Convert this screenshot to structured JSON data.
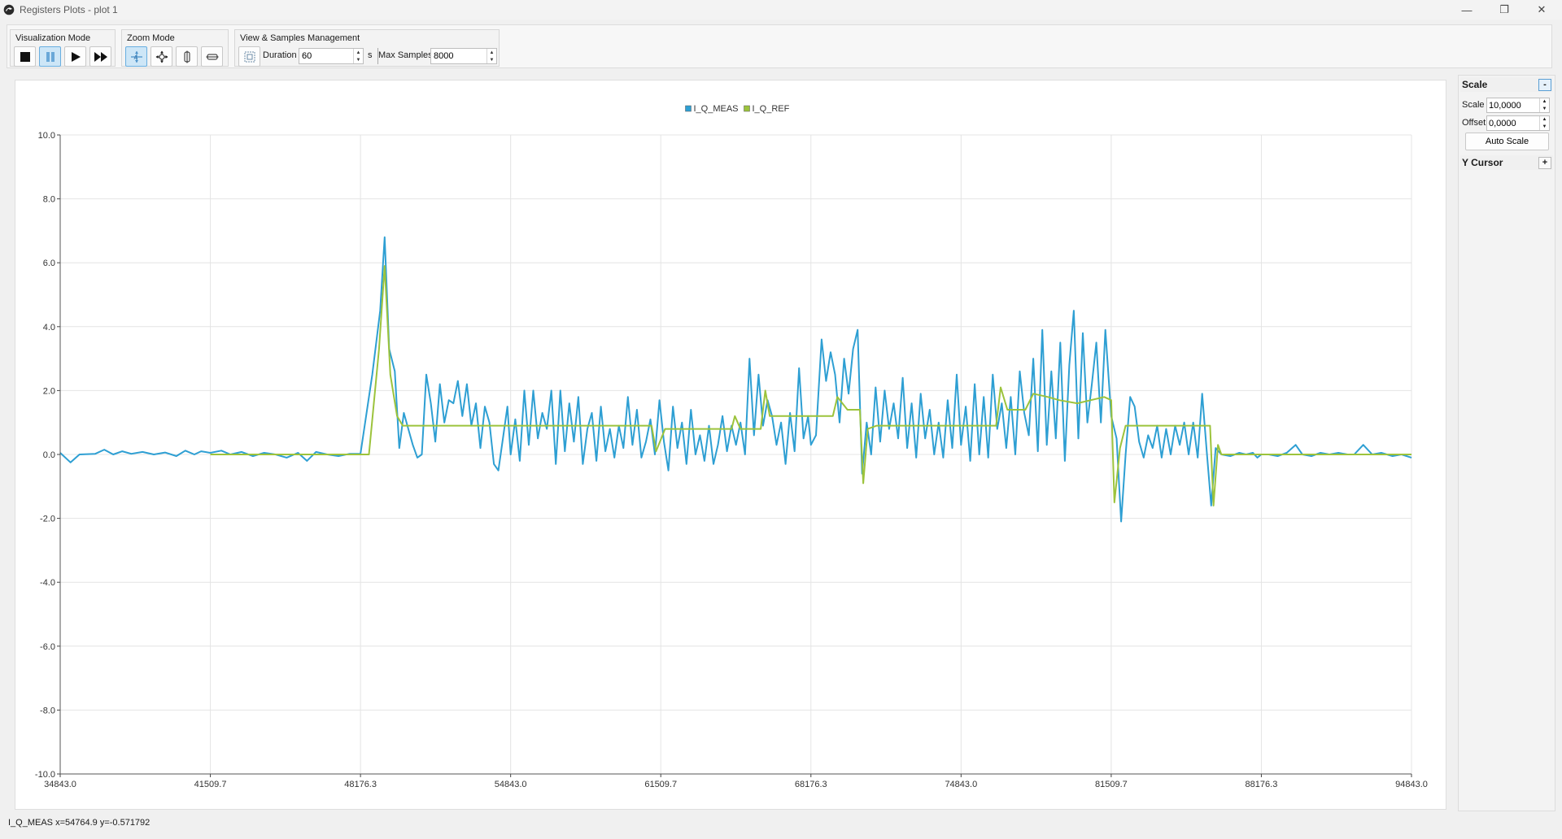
{
  "window": {
    "title": "Registers Plots - plot 1",
    "minimize_glyph": "—",
    "restore_glyph": "❐",
    "close_glyph": "✕"
  },
  "toolbar": {
    "visualization": {
      "label": "Visualization Mode",
      "buttons": [
        "stop-icon",
        "pause-icon",
        "play-icon",
        "fast-forward-icon"
      ],
      "active": "pause-icon"
    },
    "zoom": {
      "label": "Zoom Mode",
      "buttons": [
        "zoom-auto-icon",
        "zoom-xy-icon",
        "zoom-vertical-icon",
        "zoom-horizontal-icon"
      ],
      "active": "zoom-auto-icon"
    },
    "view": {
      "label": "View & Samples Management",
      "fit_icon": "fit-view-icon",
      "duration_label": "Duration",
      "duration_value": "60",
      "duration_unit": "s",
      "max_samples_label": "Max Samples",
      "max_samples_value": "8000"
    }
  },
  "sidebar": {
    "scale_header": "Scale",
    "scale_toggle": "-",
    "scale_label": "Scale",
    "scale_value": "10,0000",
    "offset_label": "Offset",
    "offset_value": "0,0000",
    "auto_scale_label": "Auto Scale",
    "ycursor_header": "Y Cursor",
    "ycursor_toggle": "+"
  },
  "status_text": "I_Q_MEAS x=54764.9 y=-0.571792",
  "colors": {
    "meas": "#2e9fd3",
    "ref": "#9cc33c",
    "active_button": "#cde6f7",
    "grid": "#e4e4e4"
  },
  "chart_data": {
    "type": "line",
    "legend_placement": "top-center",
    "grid": true,
    "xlim": [
      34843.0,
      94843.0
    ],
    "ylim": [
      -10.0,
      10.0
    ],
    "x_ticks": [
      "34843.0",
      "41509.7",
      "48176.3",
      "54843.0",
      "61509.7",
      "68176.3",
      "74843.0",
      "81509.7",
      "88176.3",
      "94843.0"
    ],
    "y_ticks": [
      "10.0",
      "8.0",
      "6.0",
      "4.0",
      "2.0",
      "0.0",
      "-2.0",
      "-4.0",
      "-6.0",
      "-8.0",
      "-10.0"
    ],
    "series": [
      {
        "name": "I_Q_MEAS",
        "color": "#2e9fd3",
        "points": [
          [
            34843,
            0.05
          ],
          [
            35300,
            -0.25
          ],
          [
            35700,
            0.0
          ],
          [
            36400,
            0.02
          ],
          [
            36800,
            0.15
          ],
          [
            37200,
            0.0
          ],
          [
            37600,
            0.1
          ],
          [
            38000,
            0.02
          ],
          [
            38500,
            0.08
          ],
          [
            39000,
            0.0
          ],
          [
            39500,
            0.06
          ],
          [
            40000,
            -0.05
          ],
          [
            40400,
            0.12
          ],
          [
            40800,
            0.0
          ],
          [
            41100,
            0.1
          ],
          [
            41509,
            0.05
          ],
          [
            42000,
            0.12
          ],
          [
            42400,
            0.0
          ],
          [
            42900,
            0.08
          ],
          [
            43400,
            -0.05
          ],
          [
            43900,
            0.05
          ],
          [
            44400,
            0.0
          ],
          [
            44900,
            -0.1
          ],
          [
            45400,
            0.05
          ],
          [
            45800,
            -0.2
          ],
          [
            46200,
            0.08
          ],
          [
            46700,
            0.0
          ],
          [
            47200,
            -0.05
          ],
          [
            47700,
            0.02
          ],
          [
            48176,
            0.02
          ],
          [
            48700,
            2.5
          ],
          [
            49050,
            4.5
          ],
          [
            49250,
            6.8
          ],
          [
            49450,
            3.3
          ],
          [
            49700,
            2.6
          ],
          [
            49900,
            0.2
          ],
          [
            50100,
            1.3
          ],
          [
            50300,
            0.8
          ],
          [
            50500,
            0.3
          ],
          [
            50700,
            -0.1
          ],
          [
            50900,
            0.0
          ],
          [
            51100,
            2.5
          ],
          [
            51300,
            1.6
          ],
          [
            51500,
            0.4
          ],
          [
            51700,
            2.2
          ],
          [
            51900,
            1.0
          ],
          [
            52100,
            1.7
          ],
          [
            52300,
            1.6
          ],
          [
            52500,
            2.3
          ],
          [
            52700,
            1.2
          ],
          [
            52900,
            2.2
          ],
          [
            53100,
            0.9
          ],
          [
            53300,
            1.6
          ],
          [
            53500,
            0.2
          ],
          [
            53700,
            1.5
          ],
          [
            53900,
            1.0
          ],
          [
            54100,
            -0.3
          ],
          [
            54300,
            -0.5
          ],
          [
            54500,
            0.5
          ],
          [
            54700,
            1.5
          ],
          [
            54843,
            0.0
          ],
          [
            55050,
            1.1
          ],
          [
            55250,
            -0.2
          ],
          [
            55450,
            2.0
          ],
          [
            55650,
            0.3
          ],
          [
            55850,
            2.0
          ],
          [
            56050,
            0.5
          ],
          [
            56250,
            1.3
          ],
          [
            56450,
            0.8
          ],
          [
            56650,
            2.0
          ],
          [
            56850,
            -0.3
          ],
          [
            57050,
            2.0
          ],
          [
            57250,
            0.1
          ],
          [
            57450,
            1.6
          ],
          [
            57650,
            0.4
          ],
          [
            57850,
            1.8
          ],
          [
            58050,
            -0.3
          ],
          [
            58250,
            0.8
          ],
          [
            58450,
            1.3
          ],
          [
            58650,
            -0.2
          ],
          [
            58850,
            1.5
          ],
          [
            59050,
            0.1
          ],
          [
            59250,
            0.8
          ],
          [
            59450,
            -0.1
          ],
          [
            59650,
            0.9
          ],
          [
            59850,
            0.2
          ],
          [
            60050,
            1.8
          ],
          [
            60250,
            0.3
          ],
          [
            60450,
            1.4
          ],
          [
            60650,
            -0.1
          ],
          [
            60850,
            0.4
          ],
          [
            61050,
            1.1
          ],
          [
            61250,
            0.0
          ],
          [
            61450,
            1.7
          ],
          [
            61650,
            0.4
          ],
          [
            61850,
            -0.5
          ],
          [
            62050,
            1.5
          ],
          [
            62250,
            0.2
          ],
          [
            62450,
            1.0
          ],
          [
            62650,
            -0.3
          ],
          [
            62850,
            1.4
          ],
          [
            63050,
            0.0
          ],
          [
            63250,
            0.6
          ],
          [
            63450,
            -0.2
          ],
          [
            63650,
            0.9
          ],
          [
            63850,
            -0.3
          ],
          [
            64050,
            0.3
          ],
          [
            64250,
            1.2
          ],
          [
            64450,
            0.1
          ],
          [
            64650,
            0.9
          ],
          [
            64850,
            0.3
          ],
          [
            65050,
            1.0
          ],
          [
            65250,
            0.0
          ],
          [
            65450,
            3.0
          ],
          [
            65650,
            0.6
          ],
          [
            65850,
            2.5
          ],
          [
            66050,
            0.9
          ],
          [
            66250,
            1.7
          ],
          [
            66450,
            1.2
          ],
          [
            66650,
            0.3
          ],
          [
            66850,
            1.0
          ],
          [
            67050,
            -0.3
          ],
          [
            67250,
            1.3
          ],
          [
            67450,
            0.1
          ],
          [
            67650,
            2.7
          ],
          [
            67850,
            0.5
          ],
          [
            68050,
            1.2
          ],
          [
            68176,
            0.3
          ],
          [
            68400,
            0.6
          ],
          [
            68650,
            3.6
          ],
          [
            68850,
            2.3
          ],
          [
            69050,
            3.2
          ],
          [
            69250,
            2.5
          ],
          [
            69450,
            1.0
          ],
          [
            69650,
            3.0
          ],
          [
            69850,
            1.9
          ],
          [
            70050,
            3.3
          ],
          [
            70250,
            3.9
          ],
          [
            70450,
            -0.6
          ],
          [
            70650,
            1.0
          ],
          [
            70850,
            0.0
          ],
          [
            71050,
            2.1
          ],
          [
            71250,
            0.4
          ],
          [
            71450,
            2.0
          ],
          [
            71650,
            0.8
          ],
          [
            71850,
            1.6
          ],
          [
            72050,
            0.5
          ],
          [
            72250,
            2.4
          ],
          [
            72450,
            0.2
          ],
          [
            72650,
            1.6
          ],
          [
            72850,
            -0.1
          ],
          [
            73050,
            1.9
          ],
          [
            73250,
            0.5
          ],
          [
            73450,
            1.4
          ],
          [
            73650,
            0.0
          ],
          [
            73850,
            1.0
          ],
          [
            74050,
            -0.1
          ],
          [
            74250,
            1.7
          ],
          [
            74450,
            0.2
          ],
          [
            74650,
            2.5
          ],
          [
            74843,
            0.3
          ],
          [
            75050,
            1.5
          ],
          [
            75250,
            -0.2
          ],
          [
            75450,
            2.2
          ],
          [
            75650,
            0.0
          ],
          [
            75850,
            1.8
          ],
          [
            76050,
            -0.1
          ],
          [
            76250,
            2.5
          ],
          [
            76450,
            0.8
          ],
          [
            76650,
            1.6
          ],
          [
            76850,
            0.2
          ],
          [
            77050,
            1.8
          ],
          [
            77250,
            0.0
          ],
          [
            77450,
            2.6
          ],
          [
            77650,
            1.3
          ],
          [
            77850,
            0.6
          ],
          [
            78050,
            3.0
          ],
          [
            78250,
            0.1
          ],
          [
            78450,
            3.9
          ],
          [
            78650,
            0.3
          ],
          [
            78850,
            2.6
          ],
          [
            79050,
            0.5
          ],
          [
            79250,
            3.5
          ],
          [
            79450,
            -0.2
          ],
          [
            79650,
            2.8
          ],
          [
            79850,
            4.5
          ],
          [
            80050,
            0.5
          ],
          [
            80250,
            3.8
          ],
          [
            80450,
            1.0
          ],
          [
            80650,
            2.2
          ],
          [
            80850,
            3.5
          ],
          [
            81050,
            1.0
          ],
          [
            81250,
            3.9
          ],
          [
            81509,
            1.2
          ],
          [
            81750,
            0.5
          ],
          [
            81950,
            -2.1
          ],
          [
            82150,
            0.0
          ],
          [
            82350,
            1.8
          ],
          [
            82550,
            1.5
          ],
          [
            82750,
            0.4
          ],
          [
            82950,
            -0.1
          ],
          [
            83150,
            0.6
          ],
          [
            83350,
            0.2
          ],
          [
            83550,
            0.9
          ],
          [
            83750,
            -0.1
          ],
          [
            83950,
            0.8
          ],
          [
            84150,
            0.0
          ],
          [
            84350,
            0.9
          ],
          [
            84550,
            0.3
          ],
          [
            84750,
            1.0
          ],
          [
            84950,
            0.0
          ],
          [
            85150,
            1.0
          ],
          [
            85350,
            -0.1
          ],
          [
            85550,
            1.9
          ],
          [
            85750,
            0.1
          ],
          [
            85950,
            -1.6
          ],
          [
            86150,
            0.2
          ],
          [
            86400,
            0.0
          ],
          [
            86800,
            -0.05
          ],
          [
            87200,
            0.05
          ],
          [
            87500,
            0.0
          ],
          [
            87800,
            0.05
          ],
          [
            88000,
            -0.1
          ],
          [
            88176,
            0.0
          ],
          [
            88500,
            0.0
          ],
          [
            88900,
            -0.05
          ],
          [
            89300,
            0.05
          ],
          [
            89700,
            0.3
          ],
          [
            90000,
            0.0
          ],
          [
            90400,
            -0.05
          ],
          [
            90800,
            0.05
          ],
          [
            91200,
            0.0
          ],
          [
            91600,
            0.05
          ],
          [
            92000,
            0.0
          ],
          [
            92300,
            0.0
          ],
          [
            92700,
            0.3
          ],
          [
            93100,
            0.0
          ],
          [
            93500,
            0.05
          ],
          [
            94000,
            -0.05
          ],
          [
            94400,
            0.0
          ],
          [
            94843,
            -0.1
          ]
        ]
      },
      {
        "name": "I_Q_REF",
        "color": "#9cc33c",
        "points": [
          [
            41509,
            0.0
          ],
          [
            44000,
            0.0
          ],
          [
            46000,
            0.0
          ],
          [
            48176,
            0.0
          ],
          [
            48550,
            0.0
          ],
          [
            49000,
            3.3
          ],
          [
            49250,
            5.9
          ],
          [
            49500,
            2.5
          ],
          [
            49800,
            1.2
          ],
          [
            50050,
            0.9
          ],
          [
            52000,
            0.9
          ],
          [
            54000,
            0.9
          ],
          [
            56000,
            0.9
          ],
          [
            59000,
            0.9
          ],
          [
            61100,
            0.9
          ],
          [
            61300,
            0.1
          ],
          [
            61700,
            0.8
          ],
          [
            64000,
            0.8
          ],
          [
            64650,
            0.8
          ],
          [
            64800,
            1.2
          ],
          [
            65050,
            0.8
          ],
          [
            65950,
            0.8
          ],
          [
            66150,
            2.0
          ],
          [
            66350,
            1.2
          ],
          [
            68000,
            1.2
          ],
          [
            69150,
            1.2
          ],
          [
            69350,
            1.8
          ],
          [
            69800,
            1.4
          ],
          [
            70350,
            1.4
          ],
          [
            70500,
            -0.9
          ],
          [
            70700,
            0.8
          ],
          [
            71100,
            0.9
          ],
          [
            74000,
            0.9
          ],
          [
            76400,
            0.9
          ],
          [
            76600,
            2.1
          ],
          [
            76900,
            1.4
          ],
          [
            77700,
            1.4
          ],
          [
            78050,
            1.9
          ],
          [
            78700,
            1.8
          ],
          [
            79200,
            1.7
          ],
          [
            80000,
            1.6
          ],
          [
            81200,
            1.8
          ],
          [
            81509,
            1.7
          ],
          [
            81650,
            -1.5
          ],
          [
            81900,
            0.2
          ],
          [
            82150,
            0.9
          ],
          [
            85900,
            0.9
          ],
          [
            86050,
            -1.6
          ],
          [
            86250,
            0.3
          ],
          [
            86400,
            0.0
          ],
          [
            90000,
            0.0
          ],
          [
            94843,
            0.0
          ]
        ]
      }
    ]
  }
}
